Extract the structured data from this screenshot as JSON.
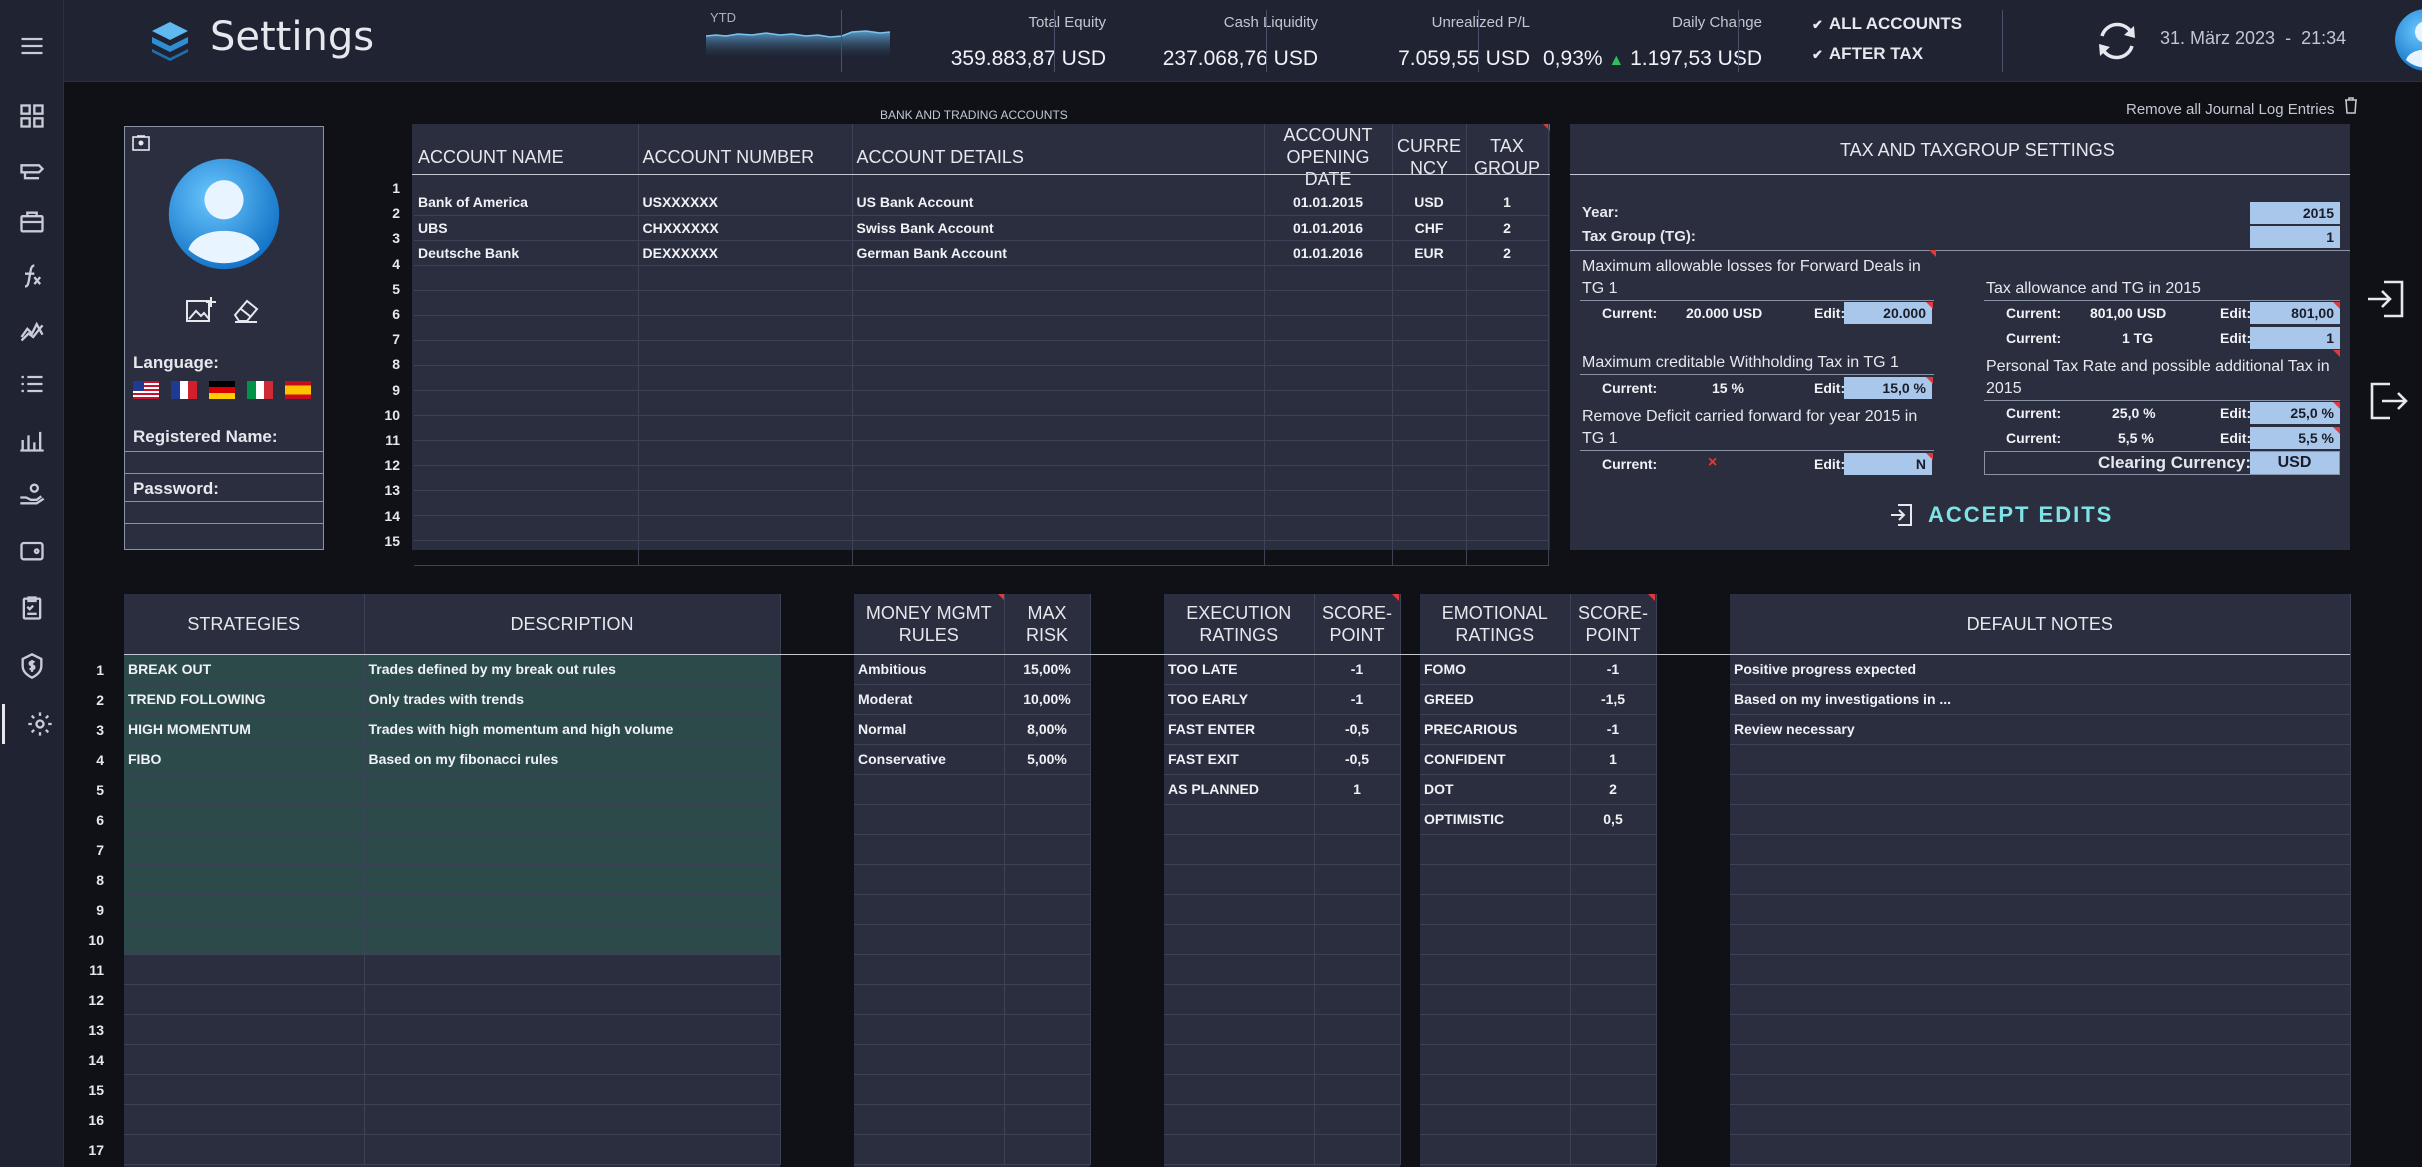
{
  "header": {
    "title": "Settings",
    "ytd_label": "YTD",
    "metrics": [
      {
        "label": "Total Equity",
        "value": "359.883,87 USD"
      },
      {
        "label": "Cash Liquidity",
        "value": "237.068,76 USD"
      },
      {
        "label": "Unrealized P/L",
        "value": "7.059,55 USD"
      },
      {
        "label": "Daily Change",
        "value_pct": "0,93%",
        "value_abs": "1.197,53 USD"
      }
    ],
    "filters": [
      "ALL ACCOUNTS",
      "AFTER TAX"
    ],
    "date": "31. März 2023",
    "time_sep": "-",
    "time": "21:34"
  },
  "sidebar": {
    "items": [
      "dashboard-icon",
      "trades-icon",
      "portfolio-icon",
      "function-icon",
      "chart-line-icon",
      "list-icon",
      "bar-chart-icon",
      "hand-money-icon",
      "wallet-icon",
      "checklist-icon",
      "tax-icon",
      "settings-icon"
    ]
  },
  "profile": {
    "language_label": "Language:",
    "registered_label": "Registered Name:",
    "password_label": "Password:",
    "flags": [
      "us",
      "fr",
      "de",
      "it",
      "es"
    ]
  },
  "accounts": {
    "caption": "BANK AND TRADING ACCOUNTS",
    "headers": {
      "name": "ACCOUNT NAME",
      "number": "ACCOUNT NUMBER",
      "details": "ACCOUNT DETAILS",
      "opening1": "ACCOUNT",
      "opening2": "OPENING DATE",
      "currency1": "CURRE",
      "currency2": "NCY",
      "tax1": "TAX",
      "tax2": "GROUP"
    },
    "rows": [
      {
        "name": "Bank of America",
        "number": "USXXXXXX",
        "details": "US Bank Account",
        "date": "01.01.2015",
        "currency": "USD",
        "tax": "1"
      },
      {
        "name": "UBS",
        "number": "CHXXXXXX",
        "details": "Swiss Bank Account",
        "date": "01.01.2016",
        "currency": "CHF",
        "tax": "2"
      },
      {
        "name": "Deutsche Bank",
        "number": "DEXXXXXX",
        "details": "German Bank Account",
        "date": "01.01.2016",
        "currency": "EUR",
        "tax": "2"
      }
    ],
    "row_numbers": [
      "1",
      "2",
      "3",
      "4",
      "5",
      "6",
      "7",
      "8",
      "9",
      "10",
      "11",
      "12",
      "13",
      "14",
      "15"
    ]
  },
  "journal": {
    "label": "Remove all Journal Log Entries"
  },
  "tax": {
    "title": "TAX AND TAXGROUP SETTINGS",
    "year_label": "Year:",
    "year": "2015",
    "tg_label": "Tax Group (TG):",
    "tg": "1",
    "current_label": "Current:",
    "edit_label": "Edit:",
    "left": [
      {
        "title1": "Maximum allowable losses for Forward Deals in",
        "title2": "TG 1",
        "current": "20.000 USD",
        "edit": "20.000"
      },
      {
        "title1": "Maximum creditable Withholding Tax in TG 1",
        "title2": "",
        "current": "15 %",
        "edit": "15,0 %"
      },
      {
        "title1": "Remove Deficit carried forward for year 2015 in",
        "title2": "TG 1",
        "current": "×",
        "edit": "N"
      }
    ],
    "right": {
      "allowance_title": "Tax allowance and TG in 2015",
      "allowance_current1": "801,00 USD",
      "allowance_edit1": "801,00",
      "allowance_current2": "1 TG",
      "allowance_edit2": "1",
      "rate_title1": "Personal Tax Rate and possible additional Tax in",
      "rate_title2": "2015",
      "rate_current1": "25,0 %",
      "rate_edit1": "25,0 %",
      "rate_current2": "5,5 %",
      "rate_edit2": "5,5 %",
      "clearing_label": "Clearing Currency:",
      "clearing_value": "USD"
    },
    "accept_label": "ACCEPT EDITS"
  },
  "strategies": {
    "headers": {
      "strategies": "STRATEGIES",
      "description": "DESCRIPTION"
    },
    "rows": [
      {
        "name": "BREAK OUT",
        "desc": "Trades defined by my break out rules"
      },
      {
        "name": "TREND FOLLOWING",
        "desc": "Only trades with trends"
      },
      {
        "name": "HIGH MOMENTUM",
        "desc": "Trades with high momentum and high volume"
      },
      {
        "name": "FIBO",
        "desc": "Based on my fibonacci rules"
      }
    ],
    "row_numbers": [
      "1",
      "2",
      "3",
      "4",
      "5",
      "6",
      "7",
      "8",
      "9",
      "10",
      "11",
      "12",
      "13",
      "14",
      "15",
      "16",
      "17"
    ]
  },
  "money": {
    "headers": {
      "rules1": "MONEY MGMT",
      "rules2": "RULES",
      "risk": "MAX RISK"
    },
    "rows": [
      {
        "name": "Ambitious",
        "risk": "15,00%"
      },
      {
        "name": "Moderat",
        "risk": "10,00%"
      },
      {
        "name": "Normal",
        "risk": "8,00%"
      },
      {
        "name": "Conservative",
        "risk": "5,00%"
      }
    ]
  },
  "execution": {
    "headers": {
      "r1": "EXECUTION",
      "r2": "RATINGS",
      "s1": "SCORE-",
      "s2": "POINT"
    },
    "rows": [
      {
        "name": "TOO LATE",
        "score": "-1"
      },
      {
        "name": "TOO EARLY",
        "score": "-1"
      },
      {
        "name": "FAST ENTER",
        "score": "-0,5"
      },
      {
        "name": "FAST EXIT",
        "score": "-0,5"
      },
      {
        "name": "AS PLANNED",
        "score": "1"
      }
    ]
  },
  "emotional": {
    "headers": {
      "r1": "EMOTIONAL",
      "r2": "RATINGS",
      "s1": "SCORE-",
      "s2": "POINT"
    },
    "rows": [
      {
        "name": "FOMO",
        "score": "-1"
      },
      {
        "name": "GREED",
        "score": "-1,5"
      },
      {
        "name": "PRECARIOUS",
        "score": "-1"
      },
      {
        "name": "CONFIDENT",
        "score": "1"
      },
      {
        "name": "DOT",
        "score": "2"
      },
      {
        "name": "OPTIMISTIC",
        "score": "0,5"
      }
    ]
  },
  "notes": {
    "header": "DEFAULT NOTES",
    "rows": [
      "Positive progress expected",
      "Based on my investigations in ...",
      "Review necessary"
    ]
  },
  "colors": {
    "accent": "#7fe3e6",
    "edit_fill": "#a8c7ea",
    "teal_cell": "#2d4a4b",
    "panel": "#2a2e3f",
    "up": "#2fbf5a",
    "red": "#e03a3a"
  }
}
